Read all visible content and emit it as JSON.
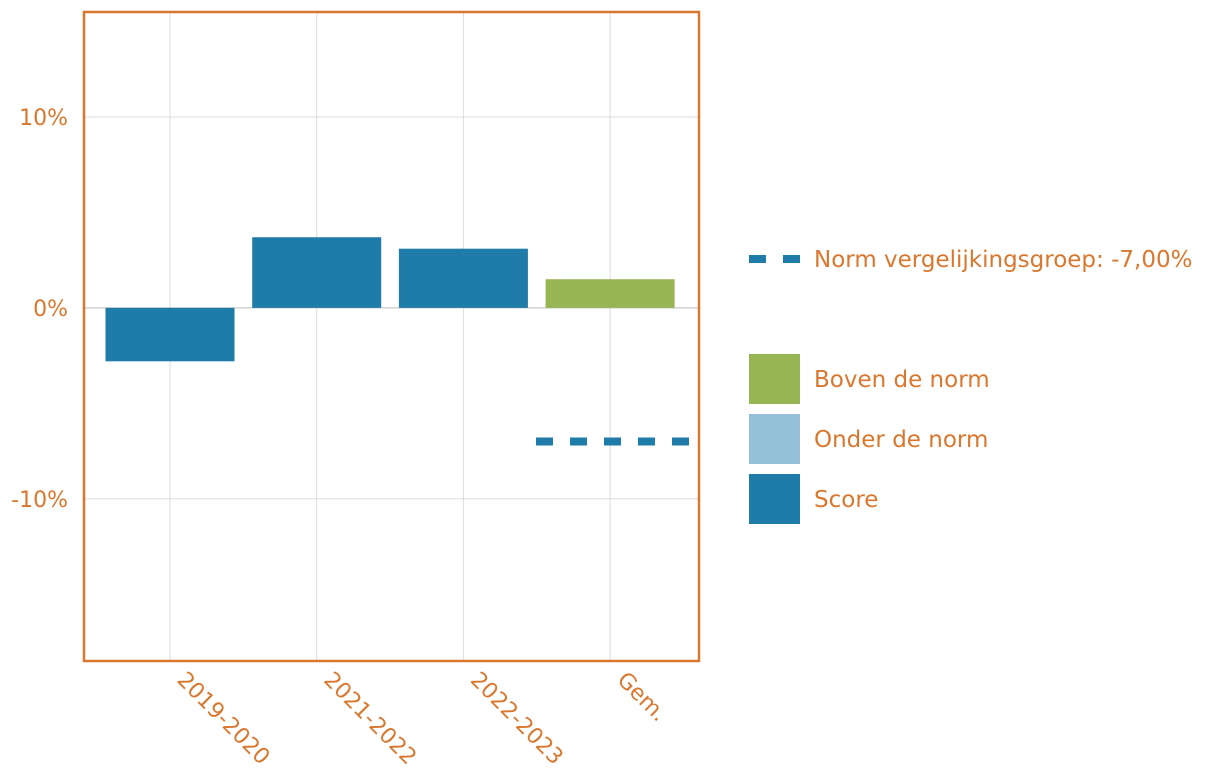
{
  "colors": {
    "frame": "#d9772e",
    "text": "#d9772e",
    "grid": "#dcdcdc",
    "zero_line": "#bdbdbd",
    "score": "#1f7ca8",
    "above_norm": "#97b552",
    "below_norm": "#93c0d6",
    "norm_line": "#1f7ca8"
  },
  "chart_data": {
    "type": "bar",
    "categories": [
      "2019-2020",
      "2021-2022",
      "2022-2023",
      "Gem."
    ],
    "values": [
      -2.8,
      3.7,
      3.1,
      1.5
    ],
    "bar_status": [
      "score",
      "score",
      "score",
      "above_norm"
    ],
    "ylim": [
      -18.5,
      15.5
    ],
    "yticks": [
      10,
      0,
      -10
    ],
    "ytick_labels": [
      "10%",
      "0%",
      "-10%"
    ],
    "norm": {
      "value": -7.0,
      "label": "Norm vergelijkingsgroep: -7,00%",
      "style": "dashed",
      "applies_to": "Gem."
    },
    "grid": true,
    "legend_position": "right",
    "legend": [
      {
        "key": "above_norm",
        "label": "Boven de norm"
      },
      {
        "key": "below_norm",
        "label": "Onder de norm"
      },
      {
        "key": "score",
        "label": "Score"
      }
    ]
  }
}
